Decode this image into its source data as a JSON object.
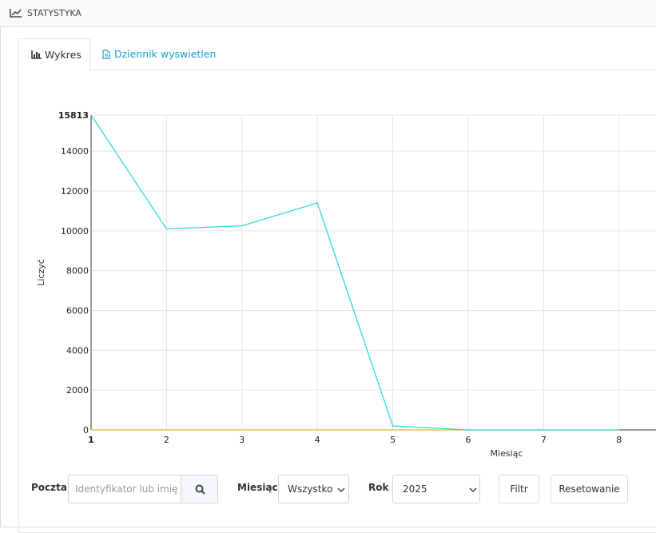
{
  "header": {
    "title": "STATYSTYKA"
  },
  "tabs": [
    "Wykres",
    "Dziennik wyswietlen"
  ],
  "chart_data": {
    "type": "line",
    "xlabel": "Miesiąc",
    "ylabel": "Liczyć",
    "x": [
      1,
      2,
      3,
      4,
      5,
      6,
      7,
      8
    ],
    "series": [
      {
        "color": "#2ed8e0",
        "values": [
          15813,
          10100,
          10250,
          11400,
          200,
          0,
          0,
          0
        ]
      },
      {
        "color": "#f0b030",
        "values": [
          0,
          0,
          0,
          0,
          0,
          0,
          0,
          0
        ]
      }
    ],
    "xlim": [
      1,
      8.49
    ],
    "xticks": [
      1,
      2,
      3,
      4,
      5,
      6,
      7,
      8
    ],
    "ylim": [
      0,
      15813
    ],
    "yticks": [
      0,
      2000,
      4000,
      6000,
      8000,
      10000,
      12000,
      14000,
      15813
    ],
    "grid": true
  },
  "filters": {
    "email_label": "Poczta",
    "email_placeholder": "Identyfikator lub imię i r",
    "month_label": "Miesiąc",
    "month_value": "Wszystko",
    "year_label": "Rok",
    "year_value": "2025",
    "filter_button": "Filtr",
    "reset_button": "Resetowanie"
  }
}
